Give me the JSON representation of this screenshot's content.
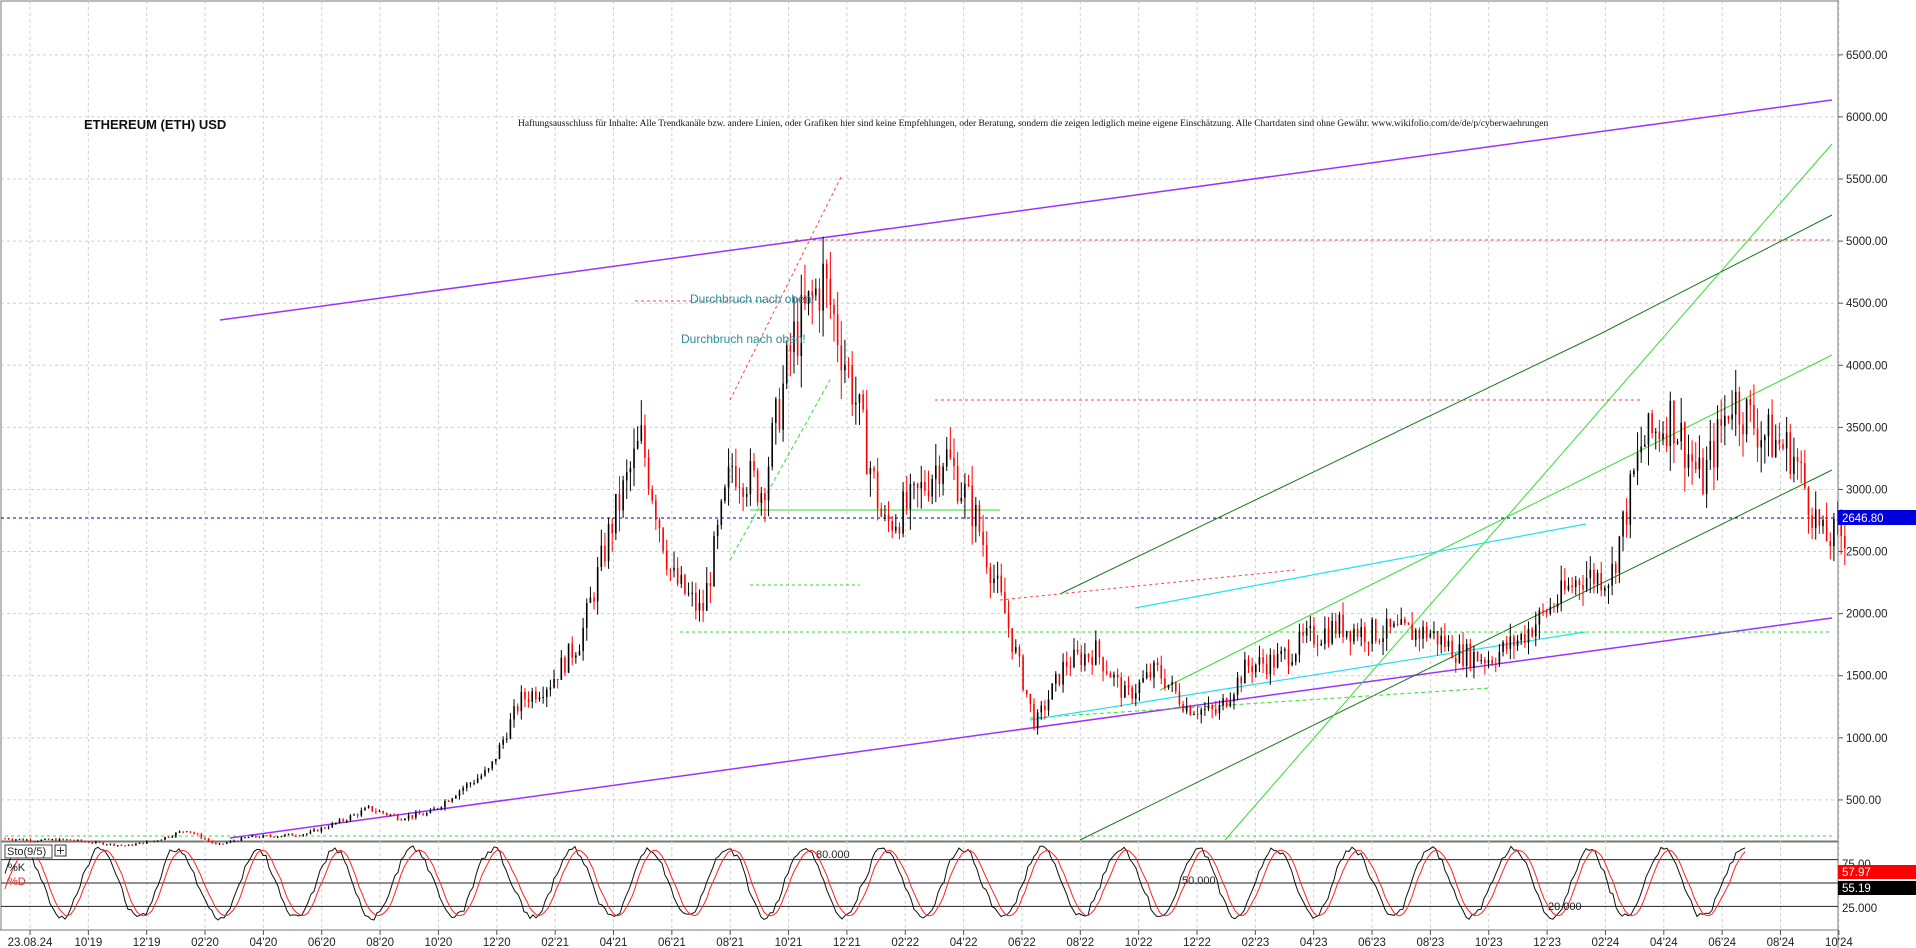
{
  "chart_data": {
    "type": "candlestick",
    "title": "ETHEREUM (ETH) USD",
    "disclaimer": "Haftungsausschluss für Inhalte: Alle Trendkanäle bzw. andere Linien, oder Grafiken hier sind keine Empfehlungen, oder Beratung, sondern die zeigen lediglich meine eigene Einschätzung. Alle Chartdaten sind ohne Gewähr. www.wikifolio.com/de/de/p/cyberwaehrungen",
    "y_ticks": [
      "500.00",
      "1000.00",
      "1500.00",
      "2000.00",
      "2500.00",
      "3000.00",
      "3500.00",
      "4000.00",
      "4500.00",
      "5000.00",
      "5500.00",
      "6000.00",
      "6500.00"
    ],
    "ylim": [
      0,
      6700
    ],
    "x_ticks": [
      "23.08.24",
      "10'19",
      "12'19",
      "02'20",
      "04'20",
      "06'20",
      "08'20",
      "10'20",
      "12'20",
      "02'21",
      "04'21",
      "06'21",
      "08'21",
      "10'21",
      "12'21",
      "02'22",
      "04'22",
      "06'22",
      "08'22",
      "10'22",
      "12'22",
      "02'23",
      "04'23",
      "06'23",
      "08'23",
      "10'23",
      "12'23",
      "02'24",
      "04'24",
      "06'24",
      "08'24",
      "10'24"
    ],
    "last_price": "2646.80",
    "price_series": [
      [
        "2019-08",
        190
      ],
      [
        "2019-09",
        175
      ],
      [
        "2019-10",
        180
      ],
      [
        "2019-11",
        155
      ],
      [
        "2019-12",
        130
      ],
      [
        "2020-01",
        175
      ],
      [
        "2020-02",
        260
      ],
      [
        "2020-03",
        135
      ],
      [
        "2020-04",
        200
      ],
      [
        "2020-05",
        210
      ],
      [
        "2020-06",
        230
      ],
      [
        "2020-07",
        320
      ],
      [
        "2020-08",
        430
      ],
      [
        "2020-09",
        360
      ],
      [
        "2020-10",
        390
      ],
      [
        "2020-11",
        580
      ],
      [
        "2020-12",
        740
      ],
      [
        "2021-01",
        1300
      ],
      [
        "2021-02",
        1450
      ],
      [
        "2021-03",
        1800
      ],
      [
        "2021-04",
        2700
      ],
      [
        "2021-05",
        3400
      ],
      [
        "2021-06",
        2300
      ],
      [
        "2021-07",
        2000
      ],
      [
        "2021-08",
        3200
      ],
      [
        "2021-09",
        3000
      ],
      [
        "2021-10",
        4200
      ],
      [
        "2021-11",
        4700
      ],
      [
        "2021-12",
        3800
      ],
      [
        "2022-01",
        2700
      ],
      [
        "2022-02",
        2900
      ],
      [
        "2022-03",
        3300
      ],
      [
        "2022-04",
        2800
      ],
      [
        "2022-05",
        2000
      ],
      [
        "2022-06",
        1100
      ],
      [
        "2022-07",
        1600
      ],
      [
        "2022-08",
        1700
      ],
      [
        "2022-09",
        1330
      ],
      [
        "2022-10",
        1550
      ],
      [
        "2022-11",
        1250
      ],
      [
        "2022-12",
        1200
      ],
      [
        "2023-01",
        1580
      ],
      [
        "2023-02",
        1620
      ],
      [
        "2023-03",
        1800
      ],
      [
        "2023-04",
        1900
      ],
      [
        "2023-05",
        1850
      ],
      [
        "2023-06",
        1850
      ],
      [
        "2023-07",
        1850
      ],
      [
        "2023-08",
        1680
      ],
      [
        "2023-09",
        1640
      ],
      [
        "2023-10",
        1800
      ],
      [
        "2023-11",
        2050
      ],
      [
        "2023-12",
        2300
      ],
      [
        "2024-01",
        2300
      ],
      [
        "2024-02",
        3350
      ],
      [
        "2024-03",
        3600
      ],
      [
        "2024-04",
        3050
      ],
      [
        "2024-05",
        3750
      ],
      [
        "2024-06",
        3450
      ],
      [
        "2024-07",
        3300
      ],
      [
        "2024-08",
        2600
      ],
      [
        "2024-08-23",
        2646.8
      ]
    ],
    "price_labels": [
      "Durchbruch nach oben!",
      "Durchbruch nach oben!"
    ],
    "oscillator": {
      "name": "Sto(9/5)",
      "k_label": "%K",
      "d_label": "%D",
      "levels": [
        "80.000",
        "50.000",
        "20.000"
      ],
      "ticks": [
        "75.00",
        "25.000"
      ],
      "k_value": "57.97",
      "d_value": "55.19",
      "ylim": [
        0,
        100
      ]
    },
    "colors": {
      "candle_up": "#000000",
      "candle_down": "#ff0000",
      "channel": "#9a33ff",
      "trend_green": "#33dd33",
      "trend_dark_green": "#1a7a1a",
      "support_cyan": "#22e0ee",
      "dashed_red": "#ff4444",
      "price_box": "#0000dd",
      "k_box": "#ff0000",
      "d_box": "#000000"
    }
  }
}
